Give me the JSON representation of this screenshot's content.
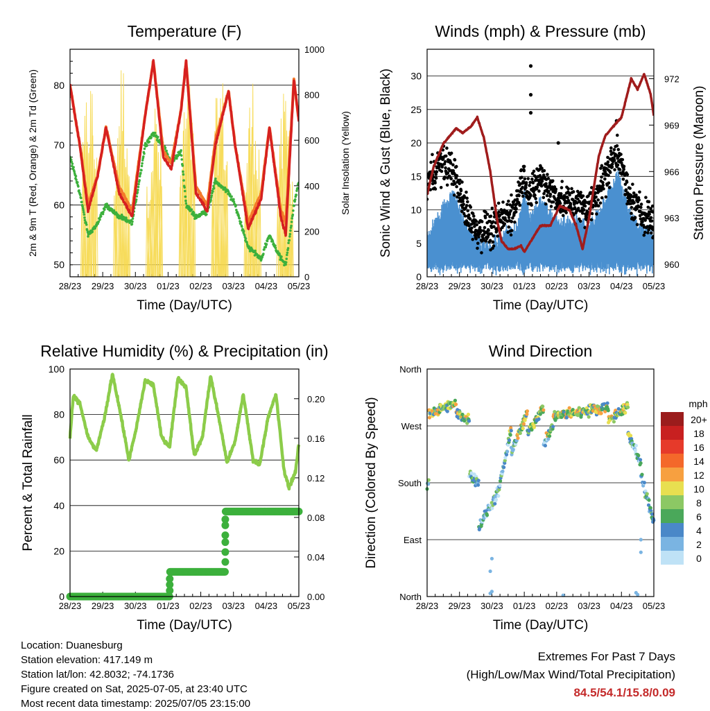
{
  "days": [
    "28/23",
    "29/23",
    "30/23",
    "01/23",
    "02/23",
    "03/23",
    "04/23",
    "05/23"
  ],
  "colors": {
    "temp2m": "#d62020",
    "temp9m": "#f47a2a",
    "dewpoint": "#3cb03c",
    "solar": "#f6d84a",
    "gust": "#000000",
    "wind": "#4a90d0",
    "pressure": "#a01c1c",
    "rh": "#8ccc4a",
    "precip": "#3cb03c",
    "extremes": "#c42a2a"
  },
  "info": {
    "location": "Location: Duanesburg",
    "elevation": "Station elevation: 417.149 m",
    "latlon": "Station lat/lon: 42.8032; -74.1736",
    "created": "Figure created on Sat, 2025-07-05, at 23:40 UTC",
    "recent": "Most recent data timestamp: 2025/07/05 23:15:00"
  },
  "extremes": {
    "title": "Extremes For Past 7 Days",
    "subtitle": "(High/Low/Max Wind/Total Precipitation)",
    "values": "84.5/54.1/15.8/0.09"
  },
  "chart_data": [
    {
      "type": "line",
      "title": "Temperature (F)",
      "xlabel": "Time (Day/UTC)",
      "ylabel": "2m & 9m T (Red, Orange) & 2m Td (Green)",
      "ylabel_right": "Solar Insolation (Yellow)",
      "ylim": [
        48,
        86
      ],
      "yticks": [
        50,
        60,
        70,
        80
      ],
      "ylim_right": [
        0,
        1000
      ],
      "yticks_right": [
        0,
        200,
        400,
        600,
        800,
        1000
      ],
      "x_days": [
        0,
        0.3,
        0.55,
        0.85,
        1.1,
        1.5,
        1.9,
        2.3,
        2.55,
        2.85,
        3.1,
        3.4,
        3.55,
        3.85,
        4.2,
        4.45,
        4.85,
        5.05,
        5.45,
        5.85,
        6.1,
        6.45,
        6.6,
        6.85,
        7.0
      ],
      "series": [
        {
          "values": [
            80,
            70,
            59,
            65,
            73,
            62,
            58,
            75,
            84,
            68,
            66,
            76,
            84,
            62,
            59,
            70,
            79,
            70,
            56,
            61,
            73,
            58,
            55,
            81,
            74
          ]
        },
        {
          "values": [
            80,
            70,
            60,
            65,
            73,
            63,
            59,
            75,
            84,
            69,
            67,
            76,
            84,
            63,
            60,
            71,
            79,
            70,
            57,
            62,
            73,
            59,
            57,
            81,
            74
          ]
        },
        {
          "values": [
            68,
            62,
            55,
            57,
            60,
            58,
            57,
            70,
            72,
            70,
            67,
            69,
            60,
            58,
            59,
            64,
            62,
            60,
            53,
            51,
            55,
            51,
            50,
            60,
            64
          ]
        }
      ],
      "solar": {
        "peaks": [
          {
            "day": 0.6,
            "value": 920
          },
          {
            "day": 1.6,
            "value": 980
          },
          {
            "day": 2.6,
            "value": 800
          },
          {
            "day": 3.6,
            "value": 900
          },
          {
            "day": 4.6,
            "value": 930
          },
          {
            "day": 5.6,
            "value": 900
          },
          {
            "day": 6.6,
            "value": 850
          }
        ]
      }
    },
    {
      "type": "line",
      "title": "Winds (mph) & Pressure (mb)",
      "xlabel": "Time (Day/UTC)",
      "ylabel": "Sonic Wind & Gust (Blue, Black)",
      "ylabel_right": "Station Pressure (Maroon)",
      "ylim": [
        0,
        34
      ],
      "yticks": [
        0,
        5,
        10,
        15,
        20,
        25,
        30
      ],
      "ylim_right": [
        959.2,
        973.9
      ],
      "yticks_right": [
        960,
        963,
        966,
        969,
        972
      ],
      "pressure": {
        "x_days": [
          0,
          0.2,
          0.5,
          0.9,
          1.1,
          1.35,
          1.55,
          1.75,
          1.95,
          2.15,
          2.3,
          2.5,
          2.7,
          2.9,
          3.0,
          3.2,
          3.5,
          3.8,
          4.1,
          4.4,
          4.6,
          4.8,
          5.0,
          5.3,
          5.5,
          5.7,
          6.0,
          6.3,
          6.5,
          6.7,
          6.9,
          7.0
        ],
        "values": [
          964.5,
          966.3,
          967.8,
          968.8,
          968.5,
          968.9,
          969.5,
          968.2,
          966.0,
          963.0,
          961.5,
          961.0,
          961.0,
          961.2,
          960.8,
          961.5,
          962.5,
          962.5,
          963.8,
          963.5,
          962.5,
          961.0,
          963.0,
          967.0,
          968.3,
          968.8,
          969.5,
          972.0,
          971.3,
          972.3,
          971.0,
          969.6
        ]
      },
      "gust_peaks": [
        31.5,
        27.2,
        24.5,
        23.3,
        20.0
      ],
      "wind_max": 15.8
    },
    {
      "type": "line",
      "title": "Relative Humidity (%) & Precipitation (in)",
      "xlabel": "Time (Day/UTC)",
      "ylabel": "Percent & Total Rainfall",
      "ylim": [
        0,
        100
      ],
      "yticks": [
        0,
        20,
        40,
        60,
        80,
        100
      ],
      "ylim_right": [
        0,
        0.23
      ],
      "yticks_right": [
        0.0,
        0.04,
        0.08,
        0.12,
        0.16,
        0.2
      ],
      "rh": {
        "x_days": [
          0,
          0.1,
          0.3,
          0.55,
          0.8,
          1.05,
          1.3,
          1.55,
          1.8,
          2.0,
          2.3,
          2.55,
          2.8,
          3.05,
          3.3,
          3.55,
          3.8,
          4.05,
          4.3,
          4.6,
          4.8,
          5.05,
          5.3,
          5.6,
          5.8,
          6.05,
          6.3,
          6.55,
          6.7,
          6.9,
          7.0
        ],
        "values": [
          70,
          88,
          85,
          70,
          64,
          78,
          98,
          80,
          60,
          72,
          95,
          93,
          70,
          66,
          96,
          92,
          62,
          70,
          97,
          75,
          59,
          68,
          89,
          60,
          58,
          78,
          89,
          55,
          48,
          55,
          67
        ]
      },
      "precip": {
        "x_days": [
          0,
          3.05,
          3.05,
          4.75,
          4.75,
          7.0
        ],
        "values": [
          0.0,
          0.0,
          0.025,
          0.025,
          0.086,
          0.086
        ]
      }
    },
    {
      "type": "scatter",
      "title": "Wind Direction",
      "xlabel": "Time (Day/UTC)",
      "ylabel": "Direction (Colored By Speed)",
      "ylim": [
        0,
        360
      ],
      "ytick_labels": [
        "North",
        "East",
        "South",
        "West",
        "North"
      ],
      "colorbar": {
        "title": "mph",
        "labels": [
          "20+",
          "18",
          "16",
          "14",
          "12",
          "10",
          "8",
          "6",
          "4",
          "2",
          "0"
        ],
        "colors": [
          "#9b1c1c",
          "#c82020",
          "#e63a2a",
          "#f4682a",
          "#f7a040",
          "#e8df50",
          "#8cc864",
          "#4aa85a",
          "#4a88c8",
          "#7ab4e2",
          "#bfe2f6"
        ]
      },
      "segments": [
        {
          "x0": 0,
          "x1": 0.05,
          "d0": 175,
          "d1": 185
        },
        {
          "x0": 0.05,
          "x1": 0.9,
          "d0": 290,
          "d1": 305
        },
        {
          "x0": 0.9,
          "x1": 1.3,
          "d0": 290,
          "d1": 280
        },
        {
          "x0": 1.3,
          "x1": 1.6,
          "d0": 195,
          "d1": 180
        },
        {
          "x0": 1.6,
          "x1": 2.2,
          "d0": 110,
          "d1": 165
        },
        {
          "x0": 2.2,
          "x1": 2.6,
          "d0": 165,
          "d1": 265
        },
        {
          "x0": 2.6,
          "x1": 3.1,
          "d0": 230,
          "d1": 290
        },
        {
          "x0": 3.1,
          "x1": 3.6,
          "d0": 260,
          "d1": 300
        },
        {
          "x0": 3.6,
          "x1": 3.9,
          "d0": 240,
          "d1": 270
        },
        {
          "x0": 3.9,
          "x1": 5.6,
          "d0": 285,
          "d1": 300
        },
        {
          "x0": 5.6,
          "x1": 6.2,
          "d0": 280,
          "d1": 300
        },
        {
          "x0": 6.2,
          "x1": 6.6,
          "d0": 260,
          "d1": 210
        },
        {
          "x0": 6.6,
          "x1": 7.0,
          "d0": 190,
          "d1": 120
        }
      ]
    }
  ]
}
